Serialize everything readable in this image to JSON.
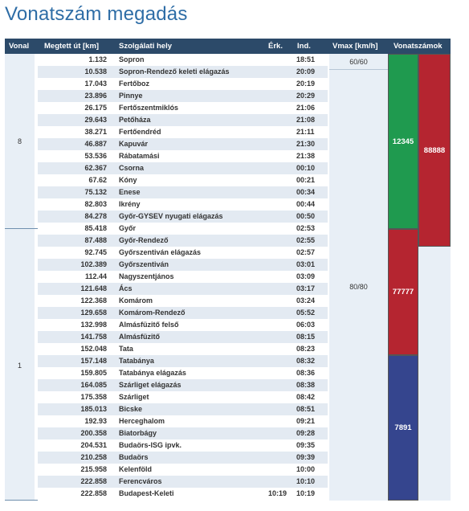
{
  "page_title": "Vonatszám megadás",
  "headers": {
    "vonal": "Vonal",
    "km": "Megtett út [km]",
    "place": "Szolgálati hely",
    "erk": "Érk.",
    "ind": "Ind.",
    "vmax": "Vmax [km/h]",
    "trains": "Vonatszámok"
  },
  "vonal_groups": [
    {
      "value": "8"
    },
    {
      "value": "1"
    }
  ],
  "vmax_groups": [
    {
      "value": "60/60"
    },
    {
      "value": "80/80"
    }
  ],
  "rows": [
    {
      "km": "1.132",
      "place": "Sopron",
      "erk": "",
      "ind": "18:51"
    },
    {
      "km": "10.538",
      "place": "Sopron-Rendező keleti elágazás",
      "erk": "",
      "ind": "20:09"
    },
    {
      "km": "17.043",
      "place": "Fertőboz",
      "erk": "",
      "ind": "20:19"
    },
    {
      "km": "23.896",
      "place": "Pinnye",
      "erk": "",
      "ind": "20:29"
    },
    {
      "km": "26.175",
      "place": "Fertőszentmiklós",
      "erk": "",
      "ind": "21:06"
    },
    {
      "km": "29.643",
      "place": "Petőháza",
      "erk": "",
      "ind": "21:08"
    },
    {
      "km": "38.271",
      "place": "Fertőendréd",
      "erk": "",
      "ind": "21:11"
    },
    {
      "km": "46.887",
      "place": "Kapuvár",
      "erk": "",
      "ind": "21:30"
    },
    {
      "km": "53.536",
      "place": "Rábatamási",
      "erk": "",
      "ind": "21:38"
    },
    {
      "km": "62.367",
      "place": "Csorna",
      "erk": "",
      "ind": "00:10"
    },
    {
      "km": "67.62",
      "place": "Kóny",
      "erk": "",
      "ind": "00:21"
    },
    {
      "km": "75.132",
      "place": "Enese",
      "erk": "",
      "ind": "00:34"
    },
    {
      "km": "82.803",
      "place": "Ikrény",
      "erk": "",
      "ind": "00:44"
    },
    {
      "km": "84.278",
      "place": "Győr-GYSEV nyugati elágazás",
      "erk": "",
      "ind": "00:50"
    },
    {
      "km": "85.418",
      "place": "Győr",
      "erk": "",
      "ind": "02:53"
    },
    {
      "km": "87.488",
      "place": "Győr-Rendező",
      "erk": "",
      "ind": "02:55"
    },
    {
      "km": "92.745",
      "place": "Győrszentiván elágazás",
      "erk": "",
      "ind": "02:57"
    },
    {
      "km": "102.389",
      "place": "Győrszentiván",
      "erk": "",
      "ind": "03:01"
    },
    {
      "km": "112.44",
      "place": "Nagyszentjános",
      "erk": "",
      "ind": "03:09"
    },
    {
      "km": "121.648",
      "place": "Ács",
      "erk": "",
      "ind": "03:17"
    },
    {
      "km": "122.368",
      "place": "Komárom",
      "erk": "",
      "ind": "03:24"
    },
    {
      "km": "129.658",
      "place": "Komárom-Rendező",
      "erk": "",
      "ind": "05:52"
    },
    {
      "km": "132.998",
      "place": "Almásfüzitő felső",
      "erk": "",
      "ind": "06:03"
    },
    {
      "km": "141.758",
      "place": "Almásfüzitő",
      "erk": "",
      "ind": "08:15"
    },
    {
      "km": "152.048",
      "place": "Tata",
      "erk": "",
      "ind": "08:23"
    },
    {
      "km": "157.148",
      "place": "Tatabánya",
      "erk": "",
      "ind": "08:32"
    },
    {
      "km": "159.805",
      "place": "Tatabánya elágazás",
      "erk": "",
      "ind": "08:36"
    },
    {
      "km": "164.085",
      "place": "Szárliget elágazás",
      "erk": "",
      "ind": "08:38"
    },
    {
      "km": "175.358",
      "place": "Szárliget",
      "erk": "",
      "ind": "08:42"
    },
    {
      "km": "185.013",
      "place": "Bicske",
      "erk": "",
      "ind": "08:51"
    },
    {
      "km": "192.93",
      "place": "Herceghalom",
      "erk": "",
      "ind": "09:21"
    },
    {
      "km": "200.358",
      "place": "Biatorbágy",
      "erk": "",
      "ind": "09:28"
    },
    {
      "km": "204.531",
      "place": "Budaörs-ISG ipvk.",
      "erk": "",
      "ind": "09:35"
    },
    {
      "km": "210.258",
      "place": "Budaörs",
      "erk": "",
      "ind": "09:39"
    },
    {
      "km": "215.958",
      "place": "Kelenföld",
      "erk": "",
      "ind": "10:00"
    },
    {
      "km": "222.858",
      "place": "Ferencváros",
      "erk": "",
      "ind": "10:10"
    },
    {
      "km": "222.858",
      "place": "Budapest-Keleti",
      "erk": "10:19",
      "ind": "10:19"
    }
  ],
  "trains": [
    {
      "number": "12345",
      "color": "#1f9a4f",
      "first_row": 0,
      "last_row": 14
    },
    {
      "number": "88888",
      "color": "#b52530",
      "first_row": 0,
      "last_row": 15
    },
    {
      "number": "77777",
      "color": "#b52530",
      "first_row": 14,
      "last_row": 25
    },
    {
      "number": "7891",
      "color": "#35458e",
      "first_row": 25,
      "last_row": 36
    }
  ],
  "colors": {
    "header_bg": "#2c4a69",
    "title": "#2e6da6",
    "row_alt": "#e3eaf2",
    "green": "#1f9a4f",
    "red": "#b52530",
    "blue": "#35458e"
  }
}
